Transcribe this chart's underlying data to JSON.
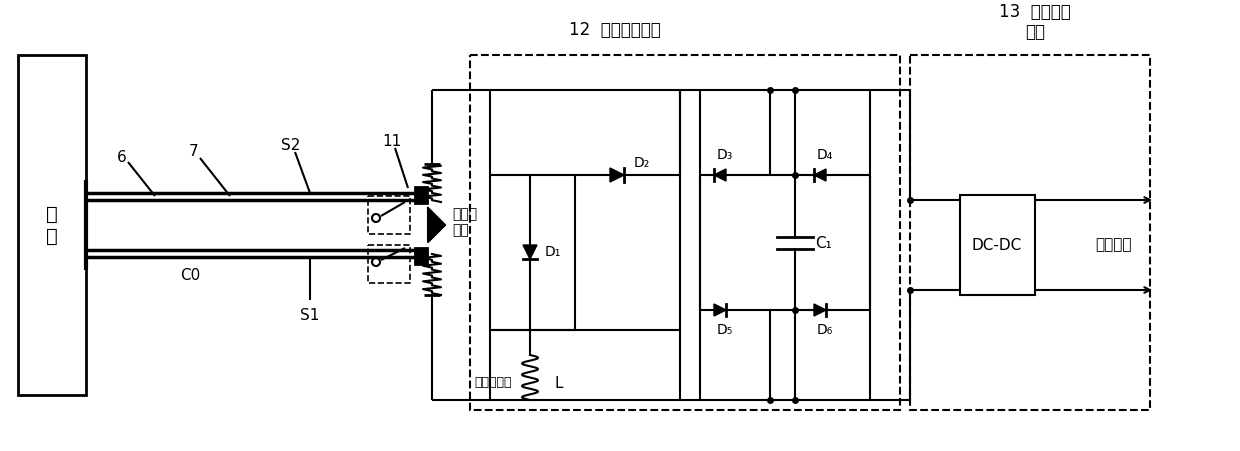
{
  "bg_color": "#ffffff",
  "line_color": "#000000",
  "figsize": [
    12.4,
    4.51
  ],
  "dpi": 100,
  "labels": {
    "jiaju": "夹\n具",
    "label_6": "6",
    "label_7": "7",
    "label_S2": "S2",
    "label_11": "11",
    "label_C0": "C0",
    "label_S1": "S1",
    "label_zhiliang": "质量块\n触点",
    "label_qingtan": "轻弹簧触点",
    "label_L": "L",
    "label_D1": "D₁",
    "label_D2": "D₂",
    "label_D3": "D₃",
    "label_D4": "D₄",
    "label_D5": "D₅",
    "label_D6": "D₆",
    "label_C1": "C₁",
    "label_12": "12  系统接口电路",
    "label_13": "13  能量管理\n单元",
    "label_DCDC": "DC-DC",
    "label_chuangan": "传感元件"
  }
}
